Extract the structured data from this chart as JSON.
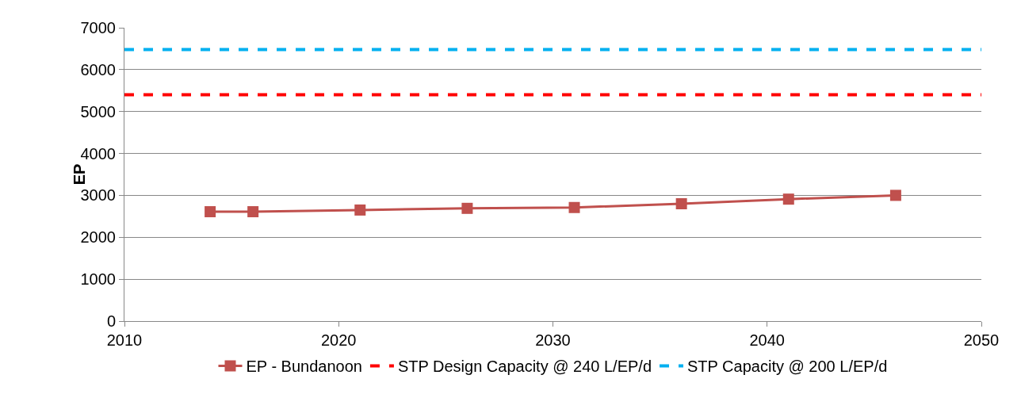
{
  "chart_data": {
    "type": "line",
    "ylabel": "EP",
    "xlim": [
      2010,
      2050
    ],
    "xticks": [
      2010,
      2020,
      2030,
      2040,
      2050
    ],
    "ylim": [
      0,
      7000
    ],
    "yticks": [
      0,
      1000,
      2000,
      3000,
      4000,
      5000,
      6000,
      7000
    ],
    "grid": "y",
    "legend": "bottom",
    "series": [
      {
        "name": "EP - Bundanoon",
        "color": "#c0504d",
        "marker": "square",
        "line_style": "solid",
        "x": [
          2014,
          2016,
          2021,
          2026,
          2031,
          2036,
          2041,
          2046
        ],
        "values": [
          2610,
          2610,
          2650,
          2690,
          2710,
          2800,
          2910,
          3000
        ]
      },
      {
        "name": "STP Design Capacity @ 240 L/EP/d",
        "color": "#ff0000",
        "marker": "none",
        "line_style": "dashed",
        "x": [
          2010,
          2050
        ],
        "values": [
          5400,
          5400
        ]
      },
      {
        "name": "STP Capacity @ 200 L/EP/d",
        "color": "#00b0f0",
        "marker": "none",
        "line_style": "dashed",
        "x": [
          2010,
          2050
        ],
        "values": [
          6480,
          6480
        ]
      }
    ]
  }
}
